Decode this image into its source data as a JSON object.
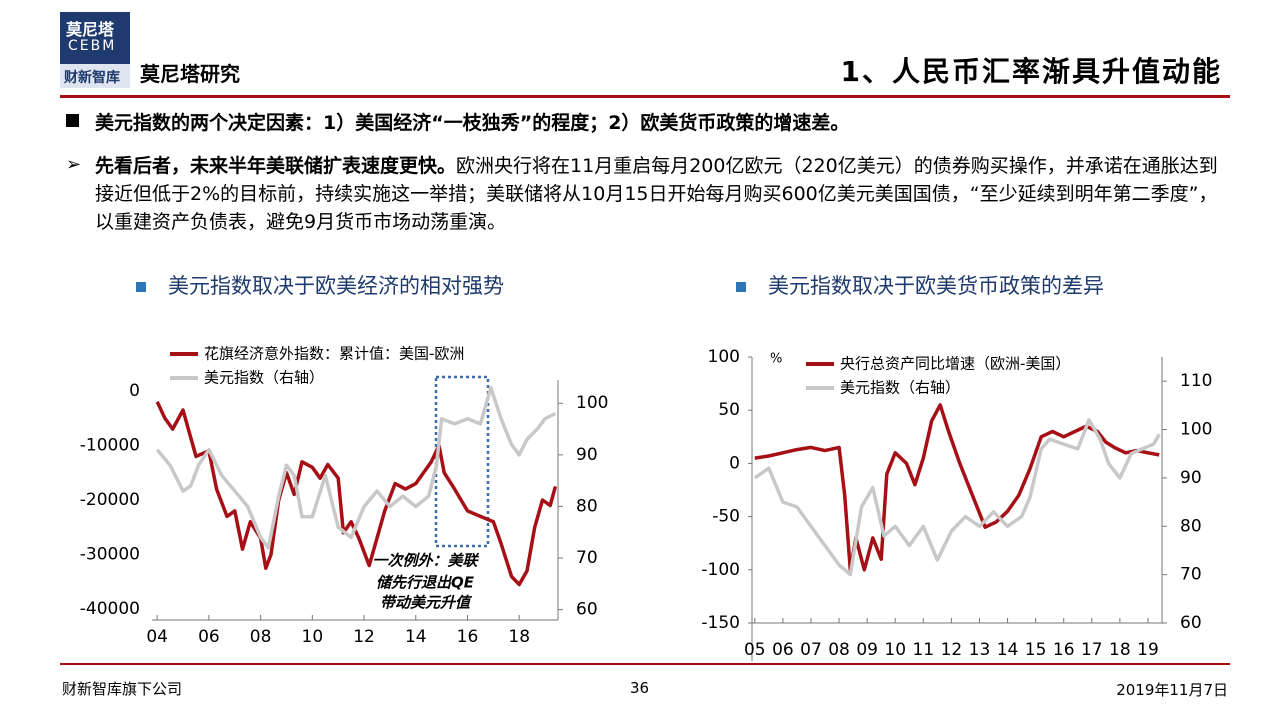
{
  "header": {
    "logo_top": "莫尼塔",
    "logo_mid": "CEBM",
    "logo_bottom": "财新智库",
    "brand": "莫尼塔研究",
    "title": "1、人民币汇率渐具升值动能"
  },
  "bullet": "美元指数的两个决定因素：1）美国经济“一枝独秀”的程度；2）欧美货币政策的增速差。",
  "paragraph": {
    "bold": "先看后者，未来半年美联储扩表速度更快。",
    "text": "欧洲央行将在11月重启每月200亿欧元（220亿美元）的债券购买操作，并承诺在通胀达到接近但低于2%的目标前，持续实施这一举措；美联储将从10月15日开始每月购买600亿美元美国国债，“至少延续到明年第二季度”，以重建资产负债表，避免9月货币市场动荡重演。"
  },
  "chart_data": [
    {
      "type": "line",
      "title": "美元指数取决于欧美经济的相对强势",
      "series": [
        {
          "name": "花旗经济意外指数：累计值：美国-欧洲",
          "color": "#a50f15",
          "x": [
            2004,
            2004.3,
            2004.6,
            2005,
            2005.5,
            2006,
            2006.3,
            2006.7,
            2007,
            2007.3,
            2007.6,
            2008,
            2008.2,
            2008.4,
            2008.7,
            2009,
            2009.3,
            2009.6,
            2010,
            2010.3,
            2010.6,
            2011,
            2011.2,
            2011.5,
            2011.8,
            2012.2,
            2012.5,
            2012.8,
            2013.2,
            2013.6,
            2014,
            2014.3,
            2014.6,
            2014.9,
            2015.1,
            2015.5,
            2016,
            2016.5,
            2017,
            2017.3,
            2017.7,
            2018,
            2018.3,
            2018.6,
            2018.9,
            2019.2,
            2019.4
          ],
          "values": [
            -2000,
            -5000,
            -7000,
            -3500,
            -12000,
            -11000,
            -18000,
            -23000,
            -22000,
            -29000,
            -24000,
            -27000,
            -32500,
            -30000,
            -20000,
            -15000,
            -19000,
            -13000,
            -14000,
            -16000,
            -13500,
            -16000,
            -26000,
            -24000,
            -27000,
            -32000,
            -27000,
            -22000,
            -17000,
            -18000,
            -17000,
            -15000,
            -13000,
            -10000,
            -15000,
            -18000,
            -22000,
            -23000,
            -24000,
            -28000,
            -34000,
            -35500,
            -33000,
            -25000,
            -20000,
            -21000,
            -17500
          ]
        },
        {
          "name": "美元指数（右轴）",
          "color": "#c8c8c8",
          "axis": "y2",
          "x": [
            2004,
            2004.5,
            2005,
            2005.3,
            2005.6,
            2006,
            2006.5,
            2007,
            2007.5,
            2008,
            2008.3,
            2008.7,
            2009,
            2009.3,
            2009.6,
            2010,
            2010.5,
            2011,
            2011.5,
            2012,
            2012.5,
            2013,
            2013.5,
            2014,
            2014.5,
            2014.8,
            2015,
            2015.5,
            2016,
            2016.5,
            2016.9,
            2017.3,
            2017.7,
            2018,
            2018.3,
            2018.7,
            2019,
            2019.4
          ],
          "values": [
            91,
            88,
            83,
            84,
            88,
            91,
            86,
            83,
            80,
            74,
            72,
            82,
            88,
            86,
            78,
            78,
            86,
            76,
            74,
            80,
            83,
            80,
            82,
            80,
            82,
            88,
            97,
            96,
            97,
            96,
            103,
            97,
            92,
            90,
            93,
            95,
            97,
            98
          ]
        }
      ],
      "xlim": [
        2003.8,
        2019.5
      ],
      "xticks": [
        {
          "value": 2004,
          "label": "04"
        },
        {
          "value": 2006,
          "label": "06"
        },
        {
          "value": 2008,
          "label": "08"
        },
        {
          "value": 2010,
          "label": "10"
        },
        {
          "value": 2012,
          "label": "12"
        },
        {
          "value": 2014,
          "label": "14"
        },
        {
          "value": 2016,
          "label": "16"
        },
        {
          "value": 2018,
          "label": "18"
        }
      ],
      "ylim": [
        -42000,
        2000
      ],
      "yticks": [
        0,
        -10000,
        -20000,
        -30000,
        -40000
      ],
      "y2lim": [
        58,
        104.5
      ],
      "y2ticks": [
        100,
        90,
        80,
        70,
        60
      ],
      "annotation": [
        "一次例外：美联",
        "储先行退出QE",
        "带动美元升值"
      ]
    },
    {
      "type": "line",
      "title": "美元指数取决于欧美货币政策的差异",
      "y_unit": "%",
      "series": [
        {
          "name": "央行总资产同比增速（欧洲-美国）",
          "color": "#a50f15",
          "x": [
            2005,
            2005.5,
            2006,
            2006.5,
            2007,
            2007.5,
            2008,
            2008.2,
            2008.4,
            2008.6,
            2008.9,
            2009.2,
            2009.5,
            2009.7,
            2010,
            2010.4,
            2010.7,
            2011,
            2011.3,
            2011.6,
            2011.9,
            2012.3,
            2012.6,
            2012.9,
            2013.2,
            2013.6,
            2014,
            2014.4,
            2014.8,
            2015.2,
            2015.6,
            2016,
            2016.4,
            2016.8,
            2017.2,
            2017.5,
            2017.8,
            2018.2,
            2018.6,
            2019,
            2019.4
          ],
          "values": [
            5,
            7,
            10,
            13,
            15,
            12,
            15,
            -30,
            -100,
            -70,
            -100,
            -70,
            -90,
            -10,
            10,
            0,
            -20,
            5,
            40,
            55,
            30,
            0,
            -20,
            -40,
            -60,
            -55,
            -45,
            -30,
            -5,
            25,
            30,
            25,
            30,
            35,
            30,
            20,
            15,
            10,
            12,
            10,
            8
          ]
        },
        {
          "name": "美元指数（右轴）",
          "color": "#c8c8c8",
          "axis": "y2",
          "x": [
            2005,
            2005.5,
            2006,
            2006.5,
            2007,
            2007.5,
            2008,
            2008.4,
            2008.8,
            2009.2,
            2009.6,
            2010,
            2010.5,
            2011,
            2011.5,
            2012,
            2012.5,
            2013,
            2013.5,
            2014,
            2014.5,
            2014.8,
            2015.2,
            2015.5,
            2016,
            2016.5,
            2016.9,
            2017.3,
            2017.6,
            2018,
            2018.4,
            2018.8,
            2019.2,
            2019.4
          ],
          "values": [
            90,
            92,
            85,
            84,
            80,
            76,
            72,
            70,
            84,
            88,
            78,
            80,
            76,
            80,
            73,
            79,
            82,
            80,
            83,
            80,
            82,
            86,
            96,
            98,
            97,
            96,
            102,
            98,
            93,
            90,
            95,
            96,
            97,
            99
          ]
        }
      ],
      "xlim": [
        2004.9,
        2019.5
      ],
      "xticks": [
        {
          "value": 2005,
          "label": "05"
        },
        {
          "value": 2006,
          "label": "06"
        },
        {
          "value": 2007,
          "label": "07"
        },
        {
          "value": 2008,
          "label": "08"
        },
        {
          "value": 2009,
          "label": "09"
        },
        {
          "value": 2010,
          "label": "10"
        },
        {
          "value": 2011,
          "label": "11"
        },
        {
          "value": 2012,
          "label": "12"
        },
        {
          "value": 2013,
          "label": "13"
        },
        {
          "value": 2014,
          "label": "14"
        },
        {
          "value": 2015,
          "label": "15"
        },
        {
          "value": 2016,
          "label": "16"
        },
        {
          "value": 2017,
          "label": "17"
        },
        {
          "value": 2018,
          "label": "18"
        },
        {
          "value": 2019,
          "label": "19"
        }
      ],
      "ylim": [
        -150,
        100
      ],
      "yticks": [
        100,
        50,
        0,
        -50,
        -100,
        -150
      ],
      "y2lim": [
        60,
        115
      ],
      "y2ticks": [
        110,
        100,
        90,
        80,
        70,
        60
      ]
    }
  ],
  "footer": {
    "left": "财新智库旗下公司",
    "page": "36",
    "date": "2019年11月7日"
  }
}
